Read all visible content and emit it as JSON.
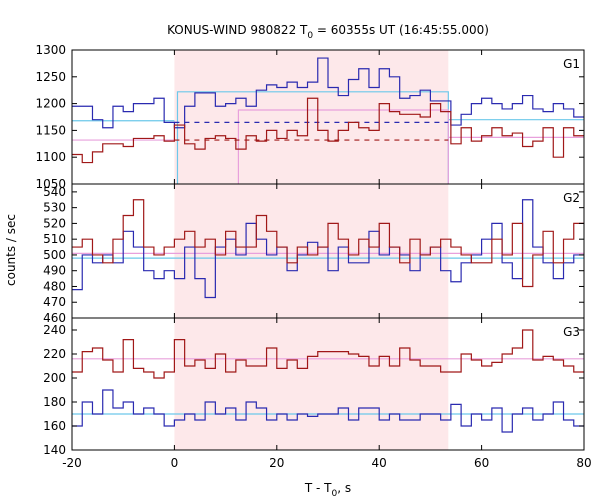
{
  "chart_data": {
    "type": "line",
    "title": "KONUS-WIND 980822 T",
    "title_sub": "0",
    "title_rest": " = 60355s UT (16:45:55.000)",
    "xlabel": "T - T",
    "xlabel_sub": "0",
    "xlabel_rest": ", s",
    "ylabel": "counts / sec",
    "xlim": [
      -20,
      80
    ],
    "x_ticks": [
      -20,
      0,
      20,
      40,
      60,
      80
    ],
    "x_tick_labels": [
      "-20",
      "0",
      "20",
      "40",
      "60",
      "80"
    ],
    "highlight_interval": [
      0,
      53.5
    ],
    "colors": {
      "blue": "#2a2ab0",
      "red": "#a01818",
      "cyan": "#6cc8ea",
      "pink": "#e8a0dc",
      "highlight": "#fde8ea"
    },
    "bin_edges": [
      -20,
      -18,
      -16,
      -14,
      -12,
      -10,
      -8,
      -6,
      -4,
      -2,
      0,
      2,
      4,
      6,
      8,
      10,
      12,
      14,
      16,
      18,
      20,
      22,
      24,
      26,
      28,
      30,
      32,
      34,
      36,
      38,
      40,
      42,
      44,
      46,
      48,
      50,
      52,
      54,
      56,
      58,
      60,
      62,
      64,
      66,
      68,
      70,
      72,
      74,
      76,
      78,
      80
    ],
    "panels": [
      {
        "label": "G1",
        "ylim": [
          1050,
          1300
        ],
        "y_ticks": [
          1050,
          1100,
          1150,
          1200,
          1250,
          1300
        ],
        "y_tick_labels": [
          "1050",
          "1100",
          "1150",
          "1200",
          "1250",
          "1300"
        ],
        "series": [
          {
            "color": "blue",
            "values": [
              1195,
              1195,
              1170,
              1155,
              1195,
              1185,
              1200,
              1200,
              1210,
              1165,
              1155,
              1195,
              1220,
              1220,
              1195,
              1200,
              1210,
              1195,
              1225,
              1235,
              1230,
              1240,
              1230,
              1240,
              1285,
              1230,
              1215,
              1245,
              1265,
              1230,
              1265,
              1250,
              1210,
              1215,
              1225,
              1205,
              1205,
              1160,
              1180,
              1200,
              1210,
              1200,
              1190,
              1200,
              1215,
              1190,
              1185,
              1200,
              1190,
              1175
            ]
          },
          {
            "color": "red",
            "values": [
              1105,
              1090,
              1110,
              1125,
              1125,
              1120,
              1135,
              1135,
              1140,
              1130,
              1160,
              1125,
              1115,
              1135,
              1140,
              1135,
              1115,
              1140,
              1130,
              1150,
              1135,
              1150,
              1140,
              1210,
              1150,
              1130,
              1150,
              1165,
              1155,
              1150,
              1200,
              1185,
              1180,
              1180,
              1175,
              1200,
              1185,
              1125,
              1155,
              1130,
              1140,
              1155,
              1140,
              1145,
              1120,
              1130,
              1155,
              1100,
              1155,
              1140
            ]
          }
        ],
        "bg_lines": [
          {
            "color": "cyan",
            "value": 1168,
            "from": -20,
            "to": 0
          },
          {
            "color": "cyan",
            "value": 1170,
            "from": 53.5,
            "to": 80
          },
          {
            "color": "pink",
            "value": 1132,
            "from": -20,
            "to": 0
          },
          {
            "color": "pink",
            "value": 1137,
            "from": 53.5,
            "to": 80
          }
        ],
        "dashed_lines": [
          {
            "color": "blue",
            "value": 1165,
            "from": 0,
            "to": 53.5
          },
          {
            "color": "red",
            "value": 1132,
            "from": 0,
            "to": 53.5
          }
        ],
        "sum_boxes": [
          {
            "color": "cyan",
            "from": 0.6,
            "to": 53.5,
            "value": 1222
          },
          {
            "color": "pink",
            "from": 12.5,
            "to": 53.5,
            "value": 1188
          }
        ]
      },
      {
        "label": "G2",
        "ylim": [
          460,
          545
        ],
        "y_ticks": [
          460,
          470,
          480,
          490,
          500,
          510,
          520,
          530,
          540
        ],
        "y_tick_labels": [
          "460",
          "470",
          "480",
          "490",
          "500",
          "510",
          "520",
          "530",
          "540"
        ],
        "series": [
          {
            "color": "blue",
            "values": [
              478,
              500,
              495,
              500,
              495,
              515,
              505,
              490,
              485,
              490,
              485,
              505,
              485,
              473,
              505,
              510,
              500,
              520,
              510,
              500,
              505,
              490,
              500,
              508,
              505,
              490,
              505,
              495,
              495,
              515,
              500,
              505,
              500,
              490,
              500,
              505,
              490,
              483,
              495,
              500,
              510,
              520,
              495,
              485,
              535,
              505,
              495,
              485,
              495,
              500
            ]
          },
          {
            "color": "red",
            "values": [
              505,
              510,
              500,
              495,
              510,
              525,
              535,
              505,
              500,
              505,
              510,
              515,
              505,
              510,
              500,
              515,
              505,
              505,
              525,
              515,
              505,
              495,
              505,
              500,
              505,
              520,
              510,
              500,
              510,
              505,
              520,
              505,
              495,
              510,
              500,
              505,
              510,
              505,
              500,
              495,
              495,
              510,
              500,
              520,
              480,
              500,
              515,
              495,
              510,
              520
            ]
          }
        ],
        "bg_lines": [
          {
            "color": "cyan",
            "value": 498,
            "from": -20,
            "to": 80
          },
          {
            "color": "pink",
            "value": 501,
            "from": -20,
            "to": 80
          }
        ]
      },
      {
        "label": "G3",
        "ylim": [
          140,
          250
        ],
        "y_ticks": [
          140,
          160,
          180,
          200,
          220,
          240
        ],
        "y_tick_labels": [
          "140",
          "160",
          "180",
          "200",
          "220",
          "240"
        ],
        "series": [
          {
            "color": "blue",
            "values": [
              160,
              180,
              170,
              190,
              175,
              180,
              170,
              175,
              170,
              160,
              165,
              170,
              165,
              180,
              170,
              175,
              165,
              180,
              175,
              165,
              170,
              165,
              170,
              168,
              170,
              170,
              175,
              165,
              175,
              175,
              165,
              170,
              165,
              165,
              170,
              170,
              165,
              178,
              160,
              170,
              165,
              175,
              155,
              170,
              175,
              165,
              170,
              180,
              165,
              160
            ]
          },
          {
            "color": "red",
            "values": [
              205,
              222,
              225,
              215,
              205,
              232,
              208,
              205,
              200,
              205,
              232,
              210,
              215,
              208,
              220,
              205,
              215,
              210,
              210,
              225,
              208,
              215,
              208,
              218,
              222,
              222,
              222,
              220,
              218,
              210,
              218,
              210,
              225,
              215,
              210,
              210,
              205,
              205,
              220,
              215,
              210,
              213,
              220,
              225,
              240,
              215,
              218,
              215,
              210,
              205
            ]
          }
        ],
        "bg_lines": [
          {
            "color": "cyan",
            "value": 170,
            "from": -20,
            "to": 80
          },
          {
            "color": "pink",
            "value": 216,
            "from": -20,
            "to": 80
          }
        ]
      }
    ]
  }
}
